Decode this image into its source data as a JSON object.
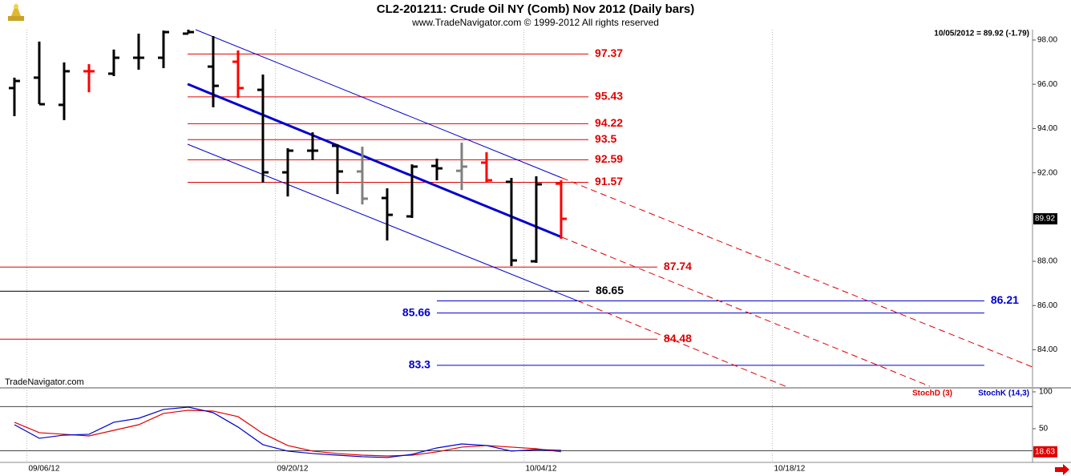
{
  "chart_data": {
    "type": "ohlc",
    "title": "CL2-201211:  Crude Oil NY (Comb) Nov 2012  (Daily bars)",
    "subtitle": "www.TradeNavigator.com © 1999-2012 All rights reserved",
    "last_info": "10/05/2012 = 89.92 (-1.79)",
    "watermark": "TradeNavigator.com",
    "xlim": [
      -0.58,
      40.97
    ],
    "xticks": [
      {
        "value": 0.5,
        "label": "09/06/12"
      },
      {
        "value": 10.5,
        "label": "09/20/12"
      },
      {
        "value": 20.5,
        "label": "10/04/12"
      },
      {
        "value": 30.5,
        "label": "10/18/12"
      }
    ],
    "ylim": [
      82.28,
      98.47
    ],
    "yticks": [
      {
        "value": 84,
        "label": "84.00"
      },
      {
        "value": 86,
        "label": "86.00"
      },
      {
        "value": 88,
        "label": "88.00"
      },
      {
        "value": 92,
        "label": "92.00"
      },
      {
        "value": 94,
        "label": "94.00"
      },
      {
        "value": 96,
        "label": "96.00"
      },
      {
        "value": 98,
        "label": "98.00"
      }
    ],
    "open": [
      95.83,
      96.3,
      95.07,
      96.59,
      96.48,
      97.2,
      97.2,
      98.29,
      96.8,
      97.02,
      95.75,
      92.02,
      93.0,
      93.22,
      92.06,
      90.86,
      90.03,
      92.31,
      92.09,
      92.46,
      91.59,
      88.0,
      91.51
    ],
    "high": [
      96.3,
      97.93,
      96.99,
      96.91,
      97.57,
      98.29,
      98.43,
      98.47,
      98.18,
      97.53,
      96.44,
      93.11,
      93.83,
      93.29,
      93.18,
      91.3,
      92.38,
      92.64,
      93.36,
      92.93,
      91.77,
      91.84,
      91.66
    ],
    "low": [
      94.56,
      95.1,
      94.38,
      95.64,
      96.37,
      96.66,
      96.73,
      98.29,
      94.96,
      95.39,
      91.55,
      90.93,
      92.57,
      91.04,
      90.57,
      88.94,
      89.96,
      91.66,
      91.22,
      91.59,
      87.78,
      87.93,
      89.01
    ],
    "close": [
      96.15,
      95.1,
      96.59,
      96.59,
      97.2,
      97.2,
      98.36,
      98.36,
      95.93,
      95.83,
      92.02,
      93.0,
      93.0,
      92.06,
      90.83,
      90.1,
      92.28,
      92.2,
      92.28,
      91.66,
      88.04,
      91.48,
      89.92
    ],
    "bar_colors": [
      "#000000",
      "#000000",
      "#000000",
      "#ff0000",
      "#000000",
      "#000000",
      "#000000",
      "#000000",
      "#000000",
      "#ff0000",
      "#000000",
      "#000000",
      "#000000",
      "#000000",
      "#808080",
      "#000000",
      "#000000",
      "#000000",
      "#808080",
      "#ff0000",
      "#000000",
      "#000000",
      "#ff0000"
    ],
    "levels": [
      {
        "value": 97.37,
        "color": "#e00000",
        "from": 6.97,
        "to": 23.1,
        "side": "right"
      },
      {
        "value": 95.43,
        "color": "#e00000",
        "from": 6.97,
        "to": 23.1,
        "side": "right"
      },
      {
        "value": 94.22,
        "color": "#e00000",
        "from": 6.97,
        "to": 23.1,
        "side": "right"
      },
      {
        "value": 93.5,
        "color": "#e00000",
        "from": 6.97,
        "to": 23.1,
        "side": "right"
      },
      {
        "value": 92.59,
        "color": "#e00000",
        "from": 6.97,
        "to": 23.1,
        "side": "right"
      },
      {
        "value": 91.57,
        "color": "#e00000",
        "from": 6.97,
        "to": 23.1,
        "side": "right"
      },
      {
        "value": 87.74,
        "color": "#e00000",
        "from": -0.58,
        "to": 25.87,
        "side": "right"
      },
      {
        "value": 86.65,
        "color": "#000000",
        "from": -0.58,
        "to": 23.13,
        "side": "right"
      },
      {
        "value": 86.21,
        "color": "#0000cc",
        "from": 17.0,
        "to": 39.03,
        "side": "right"
      },
      {
        "value": 85.66,
        "color": "#0000cc",
        "from": 17.0,
        "to": 39.03,
        "side": "left"
      },
      {
        "value": 84.48,
        "color": "#e00000",
        "from": -0.58,
        "to": 25.87,
        "side": "right"
      },
      {
        "value": 83.3,
        "color": "#0000cc",
        "from": 17.0,
        "to": 39.03,
        "side": "left"
      }
    ],
    "lines": [
      {
        "color": "#0000cc",
        "width": 3,
        "dash": false,
        "points": [
          [
            6.97,
            96.01
          ],
          [
            22.03,
            89.09
          ]
        ]
      },
      {
        "color": "#0000cc",
        "width": 1,
        "dash": false,
        "points": [
          [
            7.29,
            98.47
          ],
          [
            22.03,
            91.77
          ]
        ]
      },
      {
        "color": "#e00000",
        "width": 1,
        "dash": true,
        "points": [
          [
            22.03,
            91.77
          ],
          [
            40.97,
            83.22
          ]
        ]
      },
      {
        "color": "#0000cc",
        "width": 1,
        "dash": false,
        "points": [
          [
            6.97,
            93.29
          ],
          [
            22.65,
            86.22
          ]
        ]
      },
      {
        "color": "#e00000",
        "width": 1,
        "dash": true,
        "points": [
          [
            22.65,
            86.22
          ],
          [
            31.03,
            82.35
          ]
        ]
      },
      {
        "color": "#e00000",
        "width": 1,
        "dash": true,
        "points": [
          [
            22.03,
            89.09
          ],
          [
            36.84,
            82.35
          ]
        ]
      }
    ],
    "stochastic": {
      "ylim": [
        4.3,
        105.4
      ],
      "yticks": [
        50,
        100
      ],
      "levels": [
        20,
        80
      ],
      "series": [
        {
          "name": "StochD (3)",
          "color": "#e00000",
          "values": [
            58.7,
            44.6,
            42.4,
            40.2,
            47.8,
            55.4,
            70.7,
            75.0,
            73.9,
            66.3,
            43.5,
            27.2,
            19.6,
            16.3,
            14.1,
            13.0,
            14.1,
            18.5,
            25.0,
            27.2,
            25.0,
            22.8,
            18.63
          ]
        },
        {
          "name": "StochK (14,3)",
          "color": "#0000cc",
          "values": [
            55.4,
            37.0,
            41.3,
            42.4,
            58.7,
            64.1,
            76.1,
            79.3,
            71.7,
            52.2,
            28.3,
            19.6,
            16.3,
            14.1,
            12.0,
            10.9,
            15.2,
            23.9,
            29.3,
            27.2,
            19.6,
            21.7,
            20.7
          ]
        }
      ]
    }
  }
}
